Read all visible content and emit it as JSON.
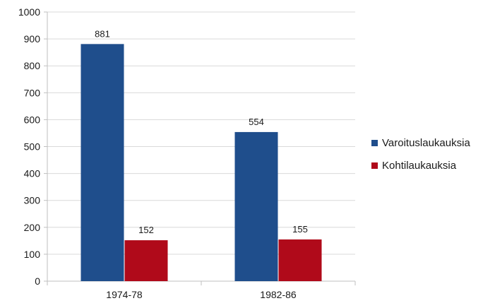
{
  "chart_data": {
    "type": "bar",
    "categories": [
      "1974-78",
      "1982-86"
    ],
    "series": [
      {
        "name": "Varoituslaukauksia",
        "values": [
          881,
          554
        ],
        "color": "#1f4e8c"
      },
      {
        "name": "Kohtilaukauksia",
        "values": [
          152,
          155
        ],
        "color": "#b00a1a"
      }
    ],
    "ylim": [
      0,
      1000
    ],
    "yticks": [
      "0",
      "100",
      "200",
      "300",
      "400",
      "500",
      "600",
      "700",
      "800",
      "900",
      "1000"
    ],
    "grid": true,
    "legend_position": "right"
  }
}
